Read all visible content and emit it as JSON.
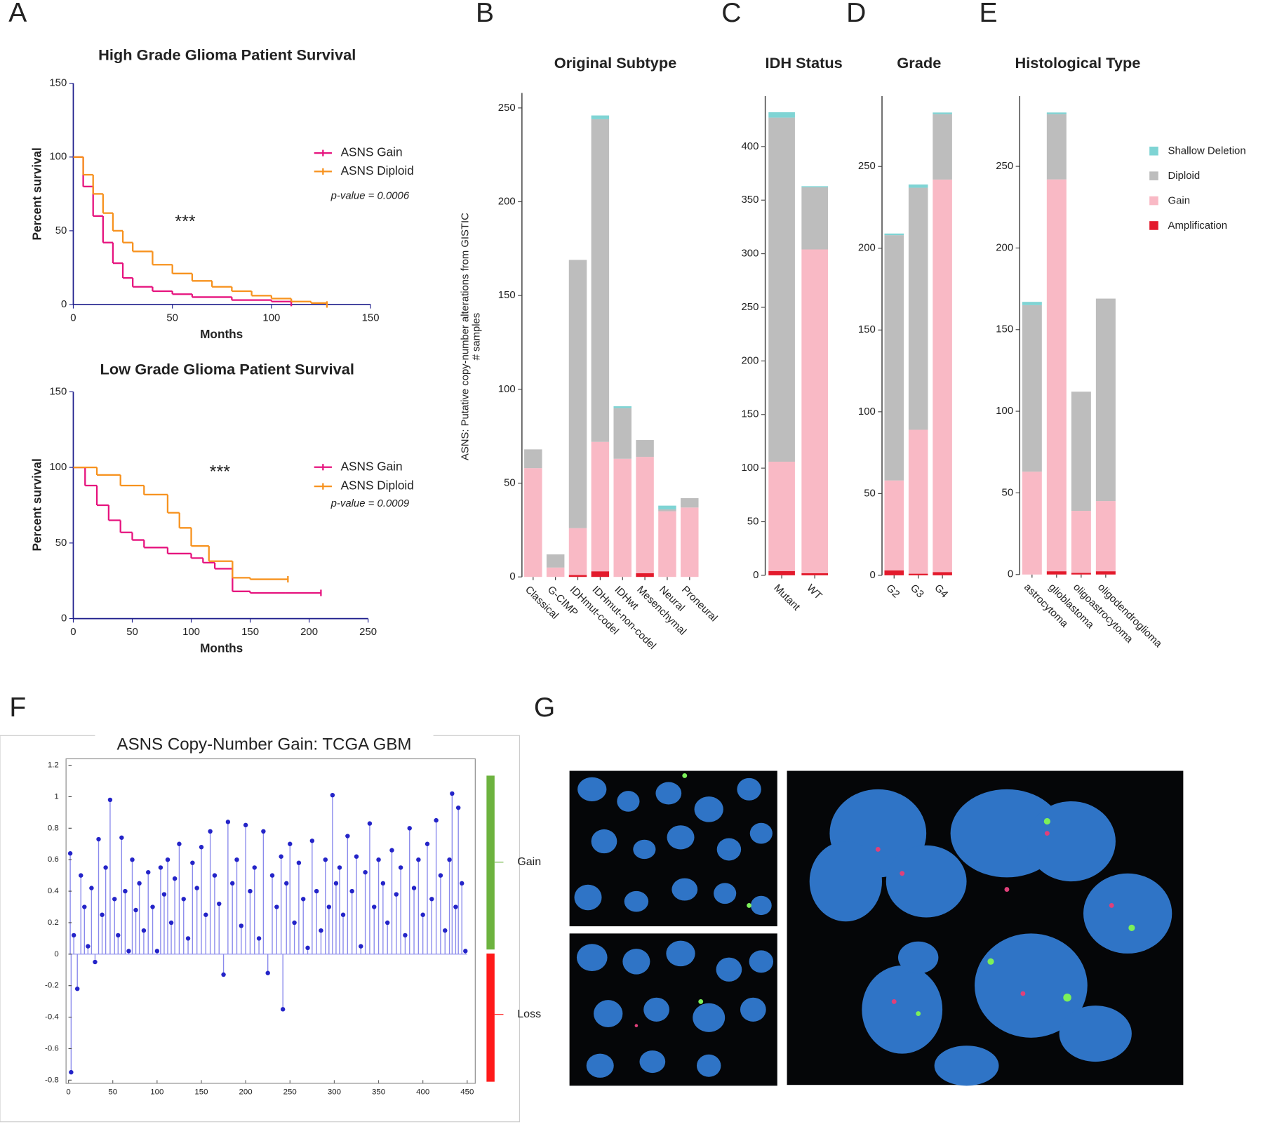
{
  "panel_labels": [
    "A",
    "B",
    "C",
    "D",
    "E",
    "F",
    "G"
  ],
  "chart_data": [
    {
      "type": "line",
      "title": "High Grade Glioma Patient Survival",
      "xlabel": "Months",
      "ylabel": "Percent survival",
      "xlim": [
        0,
        150
      ],
      "xticks": [
        0,
        50,
        100,
        150
      ],
      "ylim": [
        0,
        150
      ],
      "yticks": [
        0,
        50,
        100,
        150
      ],
      "annotations": [
        "***",
        "p-value = 0.0006"
      ],
      "series": [
        {
          "name": "ASNS Gain",
          "color": "#e6137e",
          "x": [
            0,
            5,
            10,
            15,
            20,
            25,
            30,
            40,
            50,
            60,
            80,
            100,
            110
          ],
          "values": [
            100,
            80,
            60,
            42,
            28,
            18,
            12,
            9,
            7,
            5,
            3,
            2,
            1
          ]
        },
        {
          "name": "ASNS Diploid",
          "color": "#f7921e",
          "x": [
            0,
            5,
            10,
            15,
            20,
            25,
            30,
            40,
            50,
            60,
            70,
            80,
            90,
            100,
            110,
            120,
            128
          ],
          "values": [
            100,
            88,
            75,
            62,
            50,
            42,
            36,
            27,
            21,
            16,
            12,
            9,
            6,
            4,
            2,
            1,
            0
          ]
        }
      ]
    },
    {
      "type": "line",
      "title": "Low Grade Glioma Patient Survival",
      "xlabel": "Months",
      "ylabel": "Percent survival",
      "xlim": [
        0,
        250
      ],
      "xticks": [
        0,
        50,
        100,
        150,
        200,
        250
      ],
      "ylim": [
        0,
        150
      ],
      "yticks": [
        0,
        50,
        100,
        150
      ],
      "annotations": [
        "***",
        "p-value = 0.0009"
      ],
      "series": [
        {
          "name": "ASNS Gain",
          "color": "#e6137e",
          "x": [
            0,
            10,
            20,
            30,
            40,
            50,
            60,
            80,
            100,
            110,
            120,
            135,
            150,
            180,
            210
          ],
          "values": [
            100,
            88,
            75,
            65,
            57,
            52,
            47,
            43,
            40,
            37,
            33,
            18,
            17,
            17,
            17
          ]
        },
        {
          "name": "ASNS Diploid",
          "color": "#f7921e",
          "x": [
            0,
            20,
            40,
            60,
            80,
            90,
            100,
            115,
            135,
            150,
            182
          ],
          "values": [
            100,
            95,
            88,
            82,
            70,
            60,
            48,
            38,
            27,
            26,
            26
          ]
        }
      ]
    },
    {
      "type": "bar",
      "title": "Original Subtype",
      "ylabel": [
        "ASNS: Putative copy-number alterations from GISTIC",
        "# samples"
      ],
      "categories": [
        "Classical",
        "G-CIMP",
        "IDHmut-codel",
        "IDHmut-non-codel",
        "IDHwt",
        "Mesenchymal",
        "Neural",
        "Proneural"
      ],
      "ylim": [
        0,
        258
      ],
      "yticks": [
        0,
        50,
        100,
        150,
        200,
        250
      ],
      "series": [
        {
          "name": "Amplification",
          "color": "#e31a2c",
          "values": [
            0,
            0,
            1,
            3,
            0,
            2,
            0,
            0
          ]
        },
        {
          "name": "Gain",
          "color": "#f9b9c5",
          "values": [
            58,
            5,
            25,
            69,
            63,
            62,
            35,
            37
          ]
        },
        {
          "name": "Diploid",
          "color": "#bdbdbd",
          "values": [
            10,
            7,
            143,
            172,
            27,
            9,
            1,
            5
          ]
        },
        {
          "name": "Shallow Deletion",
          "color": "#7fd4d4",
          "values": [
            0,
            0,
            0,
            2,
            1,
            0,
            2,
            0
          ]
        }
      ]
    },
    {
      "type": "bar",
      "title": "IDH Status",
      "categories": [
        "Mutant",
        "WT"
      ],
      "ylim": [
        0,
        447
      ],
      "yticks": [
        0,
        50,
        100,
        150,
        200,
        250,
        300,
        350,
        400
      ],
      "series": [
        {
          "name": "Amplification",
          "color": "#e31a2c",
          "values": [
            4,
            2
          ]
        },
        {
          "name": "Gain",
          "color": "#f9b9c5",
          "values": [
            102,
            302
          ]
        },
        {
          "name": "Diploid",
          "color": "#bdbdbd",
          "values": [
            321,
            58
          ]
        },
        {
          "name": "Shallow Deletion",
          "color": "#7fd4d4",
          "values": [
            5,
            1
          ]
        }
      ]
    },
    {
      "type": "bar",
      "title": "Grade",
      "categories": [
        "G2",
        "G3",
        "G4"
      ],
      "ylim": [
        0,
        293
      ],
      "yticks": [
        0,
        50,
        100,
        150,
        200,
        250
      ],
      "series": [
        {
          "name": "Amplification",
          "color": "#e31a2c",
          "values": [
            3,
            1,
            2
          ]
        },
        {
          "name": "Gain",
          "color": "#f9b9c5",
          "values": [
            55,
            88,
            240
          ]
        },
        {
          "name": "Diploid",
          "color": "#bdbdbd",
          "values": [
            150,
            148,
            40
          ]
        },
        {
          "name": "Shallow Deletion",
          "color": "#7fd4d4",
          "values": [
            1,
            2,
            1
          ]
        }
      ]
    },
    {
      "type": "bar",
      "title": "Histological Type",
      "categories": [
        "astrocytoma",
        "glioblastoma",
        "oligoastrocytoma",
        "oligodendroglioma"
      ],
      "ylim": [
        0,
        293
      ],
      "yticks": [
        0,
        50,
        100,
        150,
        200,
        250
      ],
      "legend": "right",
      "series": [
        {
          "name": "Amplification",
          "color": "#e31a2c",
          "values": [
            0,
            2,
            1,
            2
          ]
        },
        {
          "name": "Gain",
          "color": "#f9b9c5",
          "values": [
            63,
            240,
            38,
            43
          ]
        },
        {
          "name": "Diploid",
          "color": "#bdbdbd",
          "values": [
            102,
            40,
            73,
            124
          ]
        },
        {
          "name": "Shallow Deletion",
          "color": "#7fd4d4",
          "values": [
            2,
            1,
            0,
            0
          ]
        }
      ]
    },
    {
      "type": "lollipop",
      "title": "ASNS Copy-Number Gain: TCGA GBM",
      "xlim": [
        0,
        450
      ],
      "xticks": [
        0,
        50,
        100,
        150,
        200,
        250,
        300,
        350,
        400,
        450
      ],
      "ylim": [
        -0.8,
        1.2
      ],
      "yticks": [
        -0.8,
        -0.6,
        -0.4,
        -0.2,
        0,
        0.2,
        0.4,
        0.6,
        0.8,
        1,
        1.2
      ],
      "color": "#2424c8",
      "stem_color": "#8a8aec",
      "side_labels": [
        {
          "label": "Gain",
          "color": "#6db33f"
        },
        {
          "label": "Loss",
          "color": "#ff1a1a"
        }
      ],
      "x": [
        2,
        3,
        6,
        10,
        14,
        18,
        22,
        26,
        30,
        34,
        38,
        42,
        47,
        52,
        56,
        60,
        64,
        68,
        72,
        76,
        80,
        85,
        90,
        95,
        100,
        104,
        108,
        112,
        116,
        120,
        125,
        130,
        135,
        140,
        145,
        150,
        155,
        160,
        165,
        170,
        175,
        180,
        185,
        190,
        195,
        200,
        205,
        210,
        215,
        220,
        225,
        230,
        235,
        240,
        242,
        246,
        250,
        255,
        260,
        265,
        270,
        275,
        280,
        285,
        290,
        294,
        298,
        302,
        306,
        310,
        315,
        320,
        325,
        330,
        335,
        340,
        345,
        350,
        355,
        360,
        365,
        370,
        375,
        380,
        385,
        390,
        395,
        400,
        405,
        410,
        415,
        420,
        425,
        430,
        433,
        437,
        440,
        444,
        448
      ],
      "values": [
        0.64,
        -0.75,
        0.12,
        -0.22,
        0.5,
        0.3,
        0.05,
        0.42,
        -0.05,
        0.73,
        0.25,
        0.55,
        0.98,
        0.35,
        0.12,
        0.74,
        0.4,
        0.02,
        0.6,
        0.28,
        0.45,
        0.15,
        0.52,
        0.3,
        0.02,
        0.55,
        0.38,
        0.6,
        0.2,
        0.48,
        0.7,
        0.35,
        0.1,
        0.58,
        0.42,
        0.68,
        0.25,
        0.78,
        0.5,
        0.32,
        -0.13,
        0.84,
        0.45,
        0.6,
        0.18,
        0.82,
        0.4,
        0.55,
        0.1,
        0.78,
        -0.12,
        0.5,
        0.3,
        0.62,
        -0.35,
        0.45,
        0.7,
        0.2,
        0.58,
        0.35,
        0.04,
        0.72,
        0.4,
        0.15,
        0.6,
        0.3,
        1.01,
        0.45,
        0.55,
        0.25,
        0.75,
        0.4,
        0.62,
        0.05,
        0.52,
        0.83,
        0.3,
        0.6,
        0.45,
        0.2,
        0.66,
        0.38,
        0.55,
        0.12,
        0.8,
        0.42,
        0.6,
        0.25,
        0.7,
        0.35,
        0.85,
        0.5,
        0.15,
        0.6,
        1.02,
        0.3,
        0.93,
        0.45,
        0.02
      ]
    }
  ]
}
